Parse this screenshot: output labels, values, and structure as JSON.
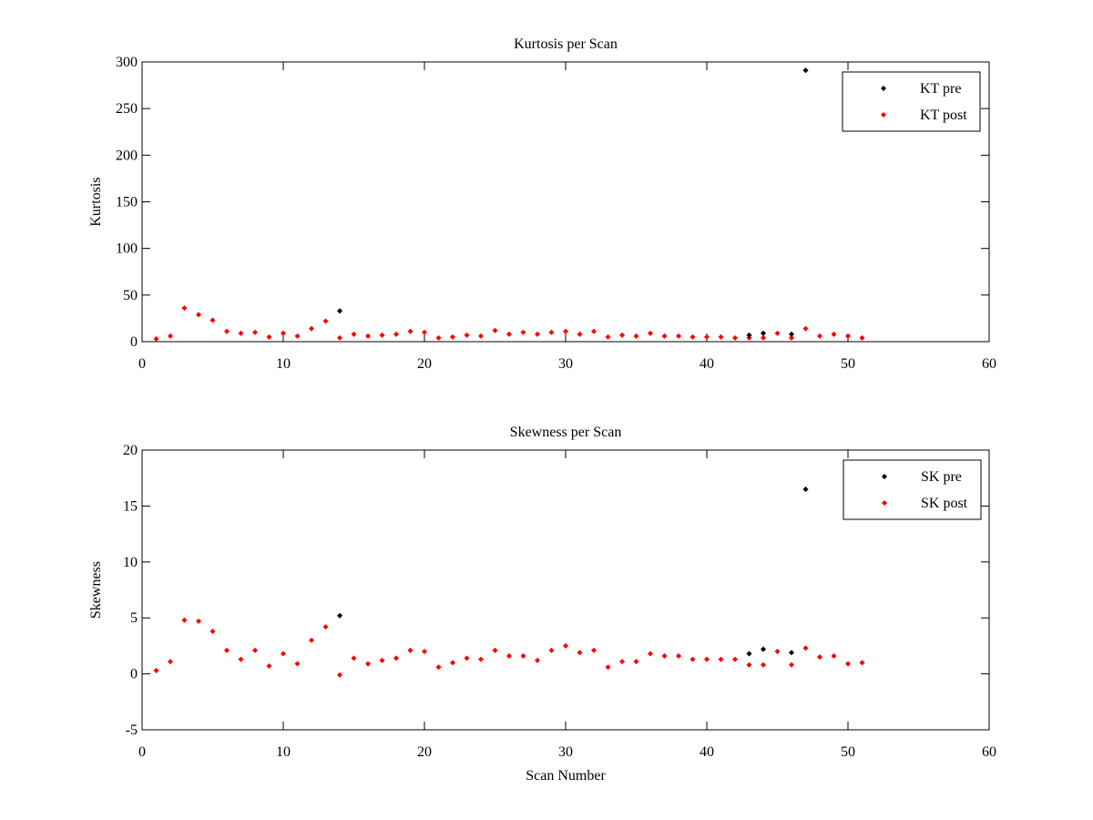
{
  "chart_data": [
    {
      "type": "scatter",
      "title": "Kurtosis per Scan",
      "xlabel": "",
      "ylabel": "Kurtosis",
      "xlim": [
        0,
        60
      ],
      "ylim": [
        0,
        300
      ],
      "xticks": [
        0,
        10,
        20,
        30,
        40,
        50,
        60
      ],
      "yticks": [
        0,
        50,
        100,
        150,
        200,
        250,
        300
      ],
      "grid": false,
      "legend_position": "top-right",
      "series": [
        {
          "name": "KT pre",
          "color": "#000000",
          "x": [
            14,
            43,
            44,
            46,
            47
          ],
          "y": [
            33,
            7,
            9,
            8,
            291
          ]
        },
        {
          "name": "KT post",
          "color": "#ff0000",
          "x": [
            1,
            2,
            3,
            4,
            5,
            6,
            7,
            8,
            9,
            10,
            11,
            12,
            13,
            14,
            15,
            16,
            17,
            18,
            19,
            20,
            21,
            22,
            23,
            24,
            25,
            26,
            27,
            28,
            29,
            30,
            31,
            32,
            33,
            34,
            35,
            36,
            37,
            38,
            39,
            40,
            41,
            42,
            43,
            44,
            45,
            46,
            47,
            48,
            49,
            50,
            51
          ],
          "y": [
            3,
            6,
            36,
            29,
            23,
            11,
            9,
            10,
            5,
            9,
            6,
            14,
            22,
            4,
            8,
            6,
            7,
            8,
            11,
            10,
            4,
            5,
            7,
            6,
            12,
            8,
            10,
            8,
            10,
            11,
            8,
            11,
            5,
            7,
            6,
            9,
            6,
            6,
            5,
            5,
            5,
            4,
            4,
            4,
            9,
            4,
            14,
            6,
            8,
            6,
            4
          ]
        }
      ]
    },
    {
      "type": "scatter",
      "title": "Skewness per Scan",
      "xlabel": "Scan Number",
      "ylabel": "Skewness",
      "xlim": [
        0,
        60
      ],
      "ylim": [
        -5,
        20
      ],
      "xticks": [
        0,
        10,
        20,
        30,
        40,
        50,
        60
      ],
      "yticks": [
        -5,
        0,
        5,
        10,
        15,
        20
      ],
      "grid": false,
      "legend_position": "top-right",
      "series": [
        {
          "name": "SK pre",
          "color": "#000000",
          "x": [
            14,
            43,
            44,
            46,
            47
          ],
          "y": [
            5.2,
            1.8,
            2.2,
            1.9,
            16.5
          ]
        },
        {
          "name": "SK post",
          "color": "#ff0000",
          "x": [
            1,
            2,
            3,
            4,
            5,
            6,
            7,
            8,
            9,
            10,
            11,
            12,
            13,
            14,
            15,
            16,
            17,
            18,
            19,
            20,
            21,
            22,
            23,
            24,
            25,
            26,
            27,
            28,
            29,
            30,
            31,
            32,
            33,
            34,
            35,
            36,
            37,
            38,
            39,
            40,
            41,
            42,
            43,
            44,
            45,
            46,
            47,
            48,
            49,
            50,
            51
          ],
          "y": [
            0.3,
            1.1,
            4.8,
            4.7,
            3.8,
            2.1,
            1.3,
            2.1,
            0.7,
            1.8,
            0.9,
            3.0,
            4.2,
            -0.1,
            1.4,
            0.9,
            1.2,
            1.4,
            2.1,
            2.0,
            0.6,
            1.0,
            1.4,
            1.3,
            2.1,
            1.6,
            1.6,
            1.2,
            2.1,
            2.5,
            1.9,
            2.1,
            0.6,
            1.1,
            1.1,
            1.8,
            1.6,
            1.6,
            1.3,
            1.3,
            1.3,
            1.3,
            0.8,
            0.8,
            2.0,
            0.8,
            2.3,
            1.5,
            1.6,
            0.9,
            1.0
          ]
        }
      ]
    }
  ]
}
